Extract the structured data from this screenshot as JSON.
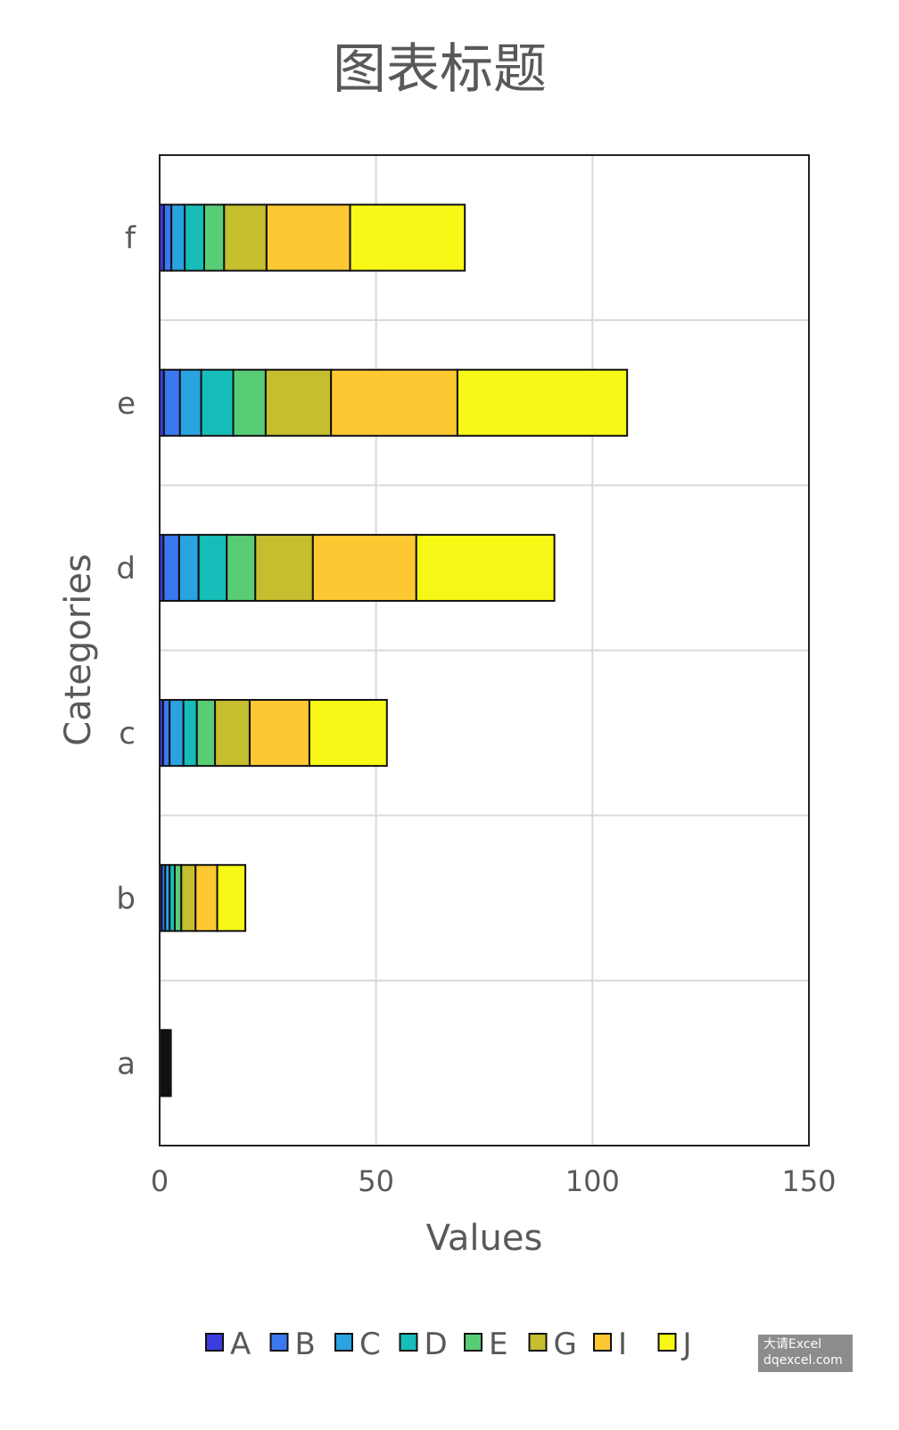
{
  "chart_data": {
    "type": "bar",
    "orientation": "horizontal",
    "stacked": true,
    "title": "图表标题",
    "xlabel": "Values",
    "ylabel": "Categories",
    "categories": [
      "a",
      "b",
      "c",
      "d",
      "e",
      "f"
    ],
    "xlim": [
      0,
      150
    ],
    "xticks": [
      0,
      50,
      100,
      150
    ],
    "xtick_labels": [
      "0",
      "50",
      "100",
      "150"
    ],
    "grid": true,
    "legend_position": "bottom",
    "series": [
      {
        "name": "A",
        "color": "#3c3ce0",
        "values": [
          0.3,
          0.5,
          0.8,
          0.9,
          1.0,
          1.0
        ]
      },
      {
        "name": "B",
        "color": "#3a78f0",
        "values": [
          0.3,
          0.8,
          1.5,
          3.6,
          3.7,
          1.7
        ]
      },
      {
        "name": "C",
        "color": "#2aa3e0",
        "values": [
          0.3,
          1.0,
          3.2,
          4.5,
          4.9,
          3.1
        ]
      },
      {
        "name": "D",
        "color": "#17bdb9",
        "values": [
          0.3,
          1.2,
          3.1,
          6.5,
          7.4,
          4.5
        ]
      },
      {
        "name": "E",
        "color": "#58cd76",
        "values": [
          0.3,
          1.5,
          4.2,
          6.6,
          7.5,
          4.6
        ]
      },
      {
        "name": "G",
        "color": "#c5be2e",
        "values": [
          0.3,
          3.3,
          8.0,
          13.3,
          15.1,
          9.8
        ]
      },
      {
        "name": "I",
        "color": "#fdc832",
        "values": [
          0.4,
          5.0,
          13.8,
          23.9,
          29.2,
          19.3
        ]
      },
      {
        "name": "J",
        "color": "#f7f815",
        "values": [
          0.4,
          6.5,
          17.9,
          31.9,
          39.2,
          26.5
        ]
      }
    ]
  },
  "watermark": {
    "line1": "大请Excel",
    "line2": "dqexcel.com"
  }
}
